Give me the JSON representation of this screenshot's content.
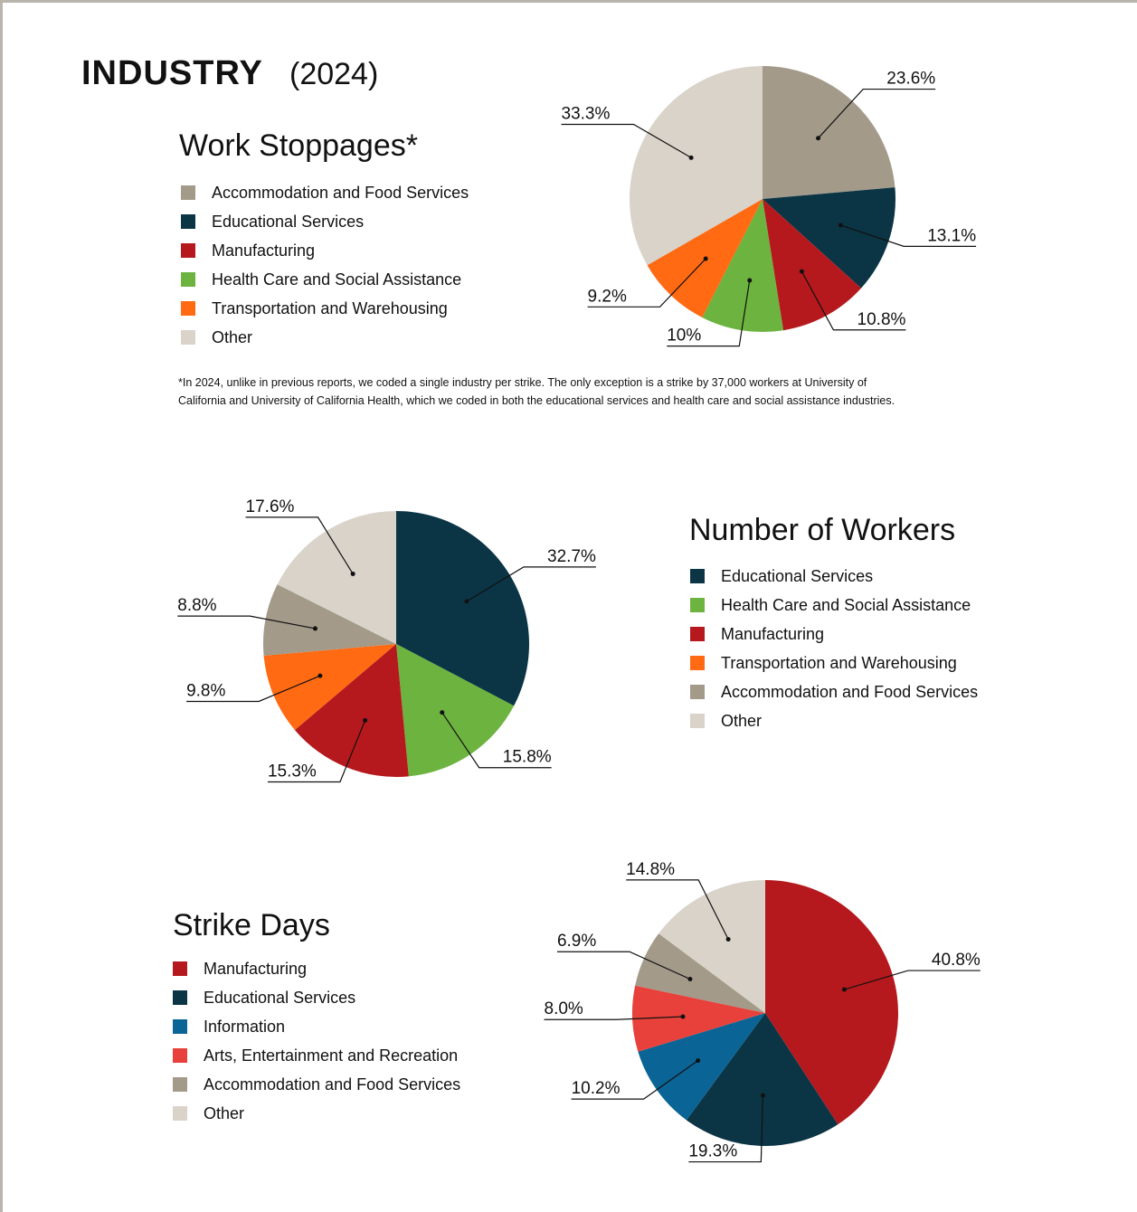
{
  "header": {
    "title": "INDUSTRY",
    "year": "(2024)"
  },
  "chart_data": [
    {
      "type": "pie",
      "title": "Work Stoppages*",
      "categories": [
        "Accommodation and Food Services",
        "Educational Services",
        "Manufacturing",
        "Health Care and Social Assistance",
        "Transportation and Warehousing",
        "Other"
      ],
      "values": [
        23.6,
        13.1,
        10.8,
        10,
        9.2,
        33.3
      ],
      "value_labels": [
        "23.6%",
        "13.1%",
        "10.8%",
        "10%",
        "9.2%",
        "33.3%"
      ],
      "colors": [
        "#a39a8a",
        "#0b3545",
        "#b5191d",
        "#6db33f",
        "#ff6a13",
        "#d9d3ca"
      ]
    },
    {
      "type": "pie",
      "title": "Number of Workers",
      "categories": [
        "Educational Services",
        "Health Care and Social Assistance",
        "Manufacturing",
        "Transportation and Warehousing",
        "Accommodation and Food Services",
        "Other"
      ],
      "values": [
        32.7,
        15.8,
        15.3,
        9.8,
        8.8,
        17.6
      ],
      "value_labels": [
        "32.7%",
        "15.8%",
        "15.3%",
        "9.8%",
        "8.8%",
        "17.6%"
      ],
      "colors": [
        "#0b3545",
        "#6db33f",
        "#b5191d",
        "#ff6a13",
        "#a39a8a",
        "#d9d3ca"
      ]
    },
    {
      "type": "pie",
      "title": "Strike Days",
      "categories": [
        "Manufacturing",
        "Educational Services",
        "Information",
        "Arts, Entertainment and Recreation",
        "Accommodation and Food Services",
        "Other"
      ],
      "values": [
        40.8,
        19.3,
        10.2,
        8.0,
        6.9,
        14.8
      ],
      "value_labels": [
        "40.8%",
        "19.3%",
        "10.2%",
        "8.0%",
        "6.9%",
        "14.8%"
      ],
      "colors": [
        "#b5191d",
        "#0b3545",
        "#0a6496",
        "#e8403a",
        "#a39a8a",
        "#d9d3ca"
      ]
    }
  ],
  "footnote": [
    "*In 2024, unlike in previous reports, we coded a single industry per strike. The only exception is a strike by 37,000 workers at University of",
    "California and University of California Health, which we coded in both the educational services and health care and social assistance industries."
  ]
}
